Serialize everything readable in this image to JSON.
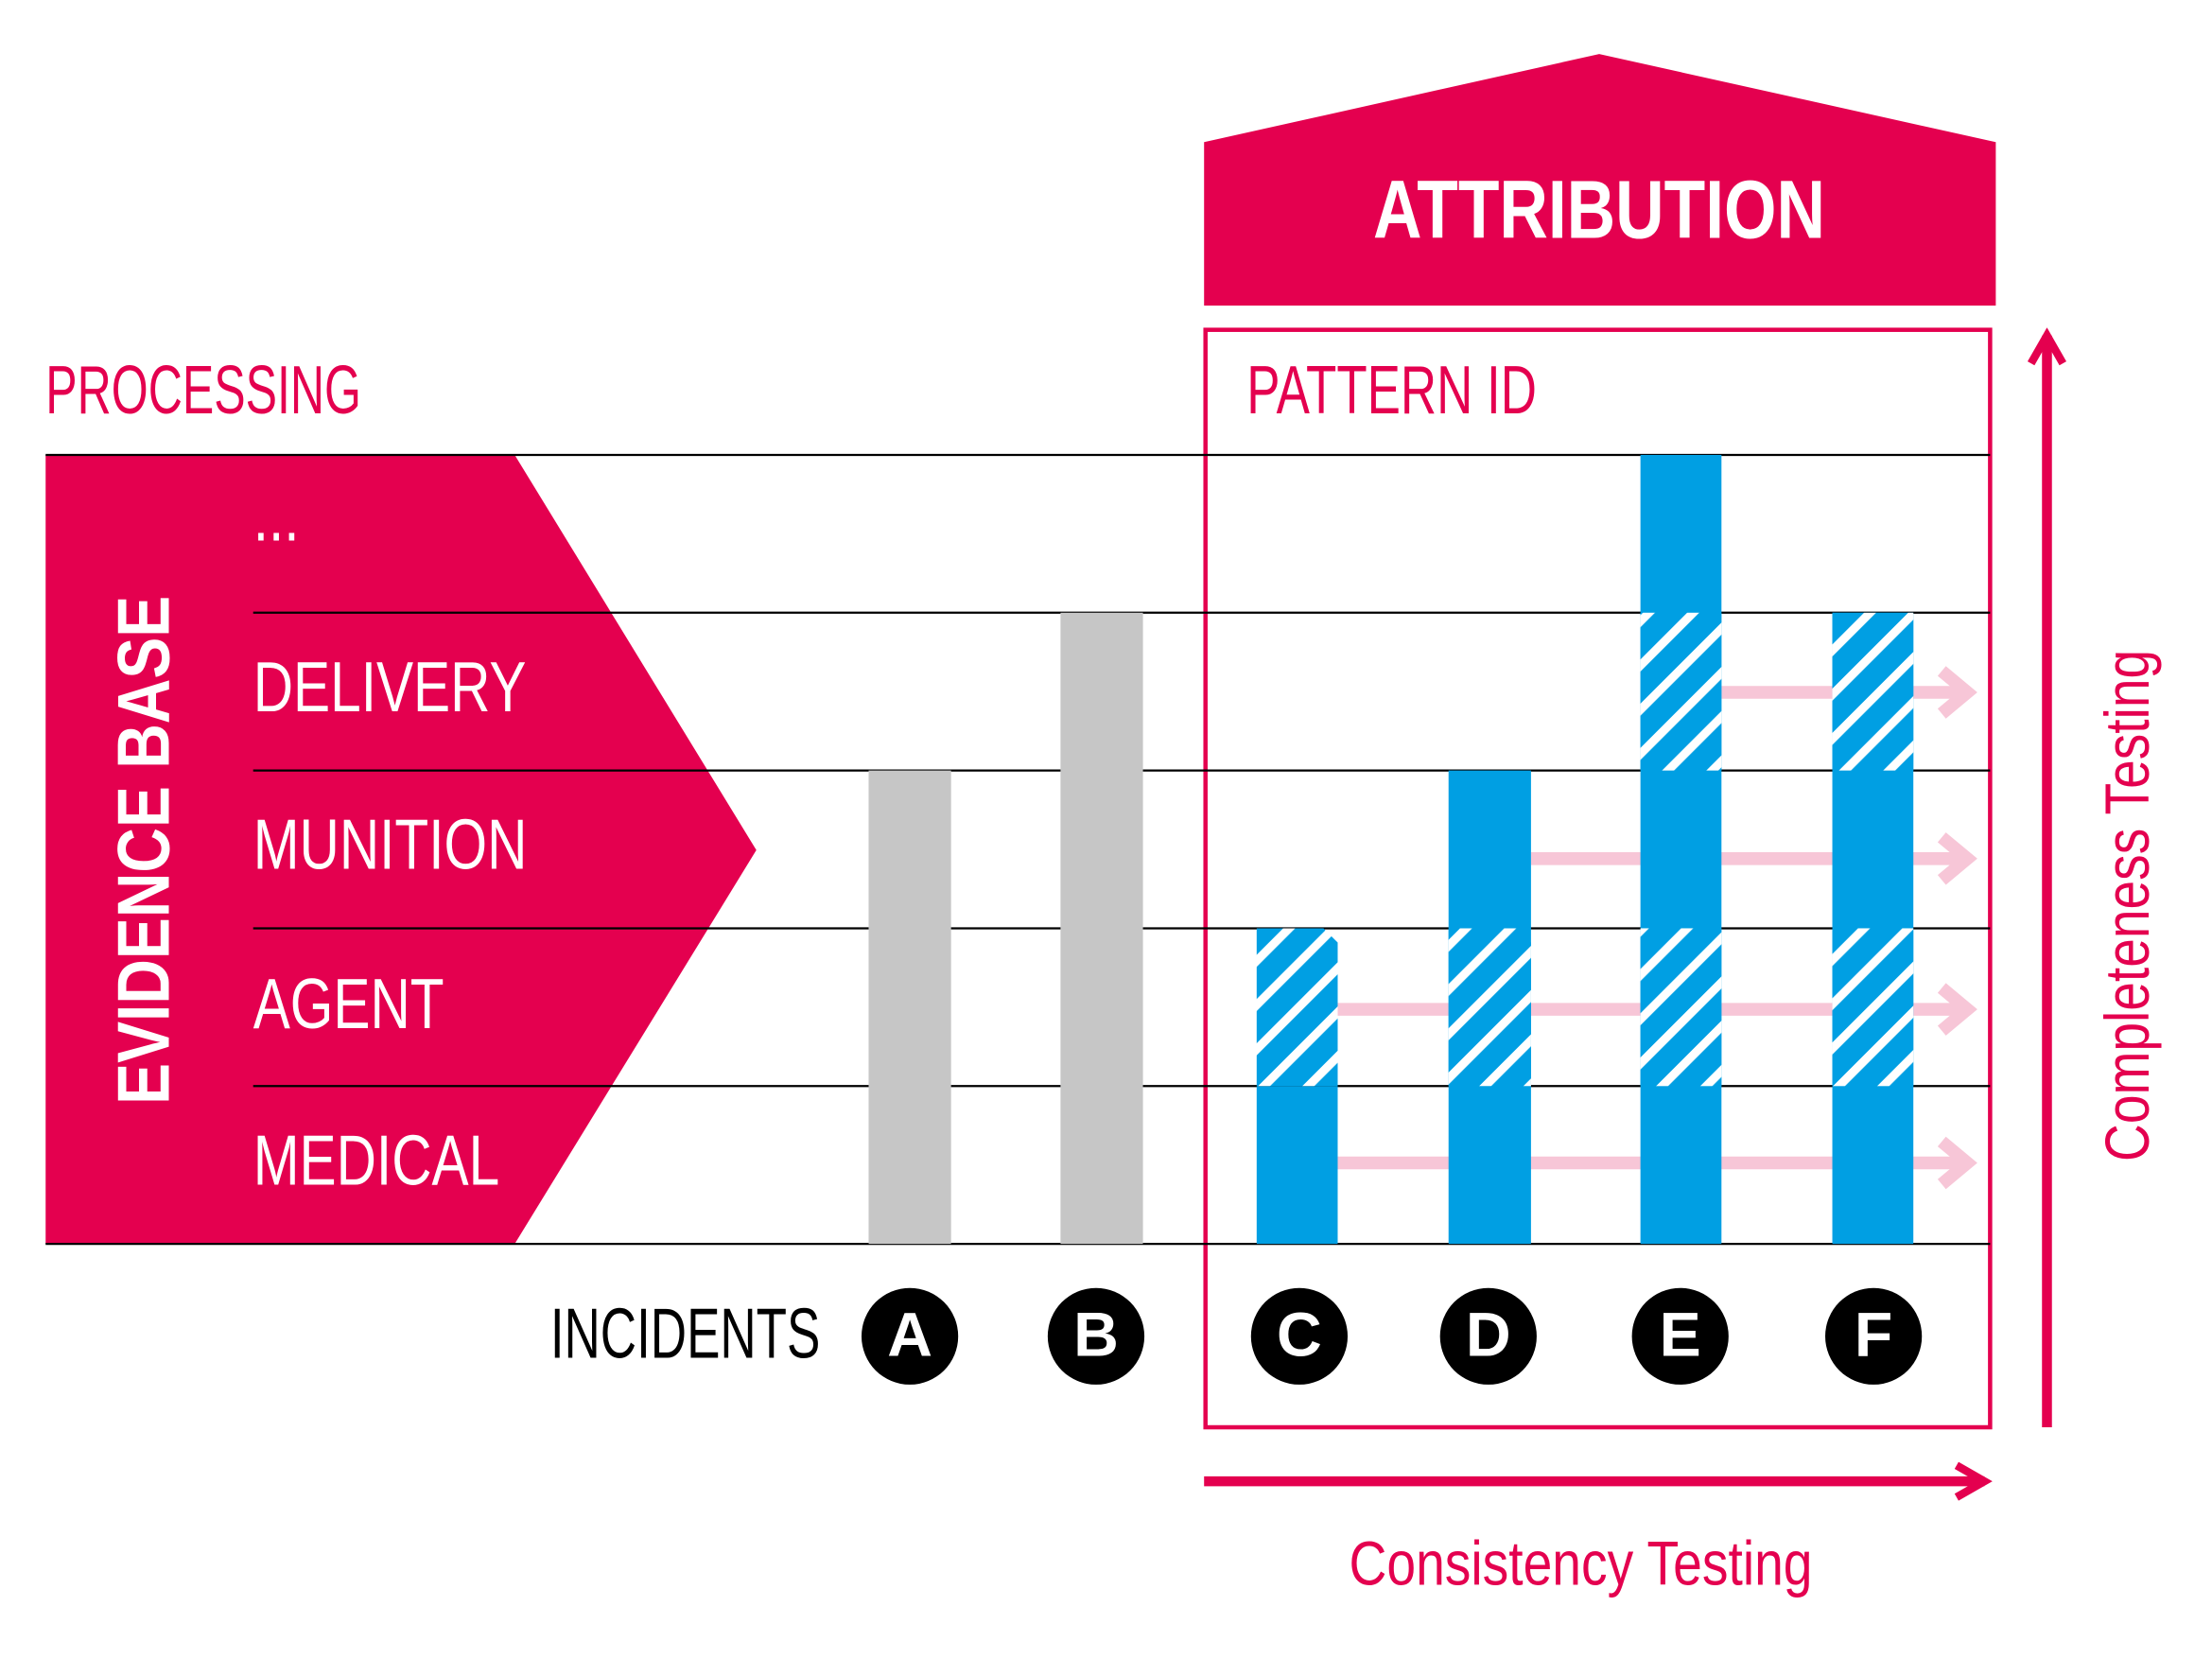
{
  "header": {
    "title": "ATTRIBUTION"
  },
  "processing": "PROCESSING",
  "pattern_id": "PATTERN ID",
  "evidence_base": {
    "title": "EVIDENCE BASE",
    "rows": [
      "...",
      "DELIVERY",
      "MUNITION",
      "AGENT",
      "MEDICAL"
    ]
  },
  "incidents": {
    "label": "INCIDENTS",
    "items": [
      "A",
      "B",
      "C",
      "D",
      "E",
      "F"
    ]
  },
  "axes": {
    "vertical": "Completeness Testing",
    "horizontal": "Consistency Testing"
  }
}
